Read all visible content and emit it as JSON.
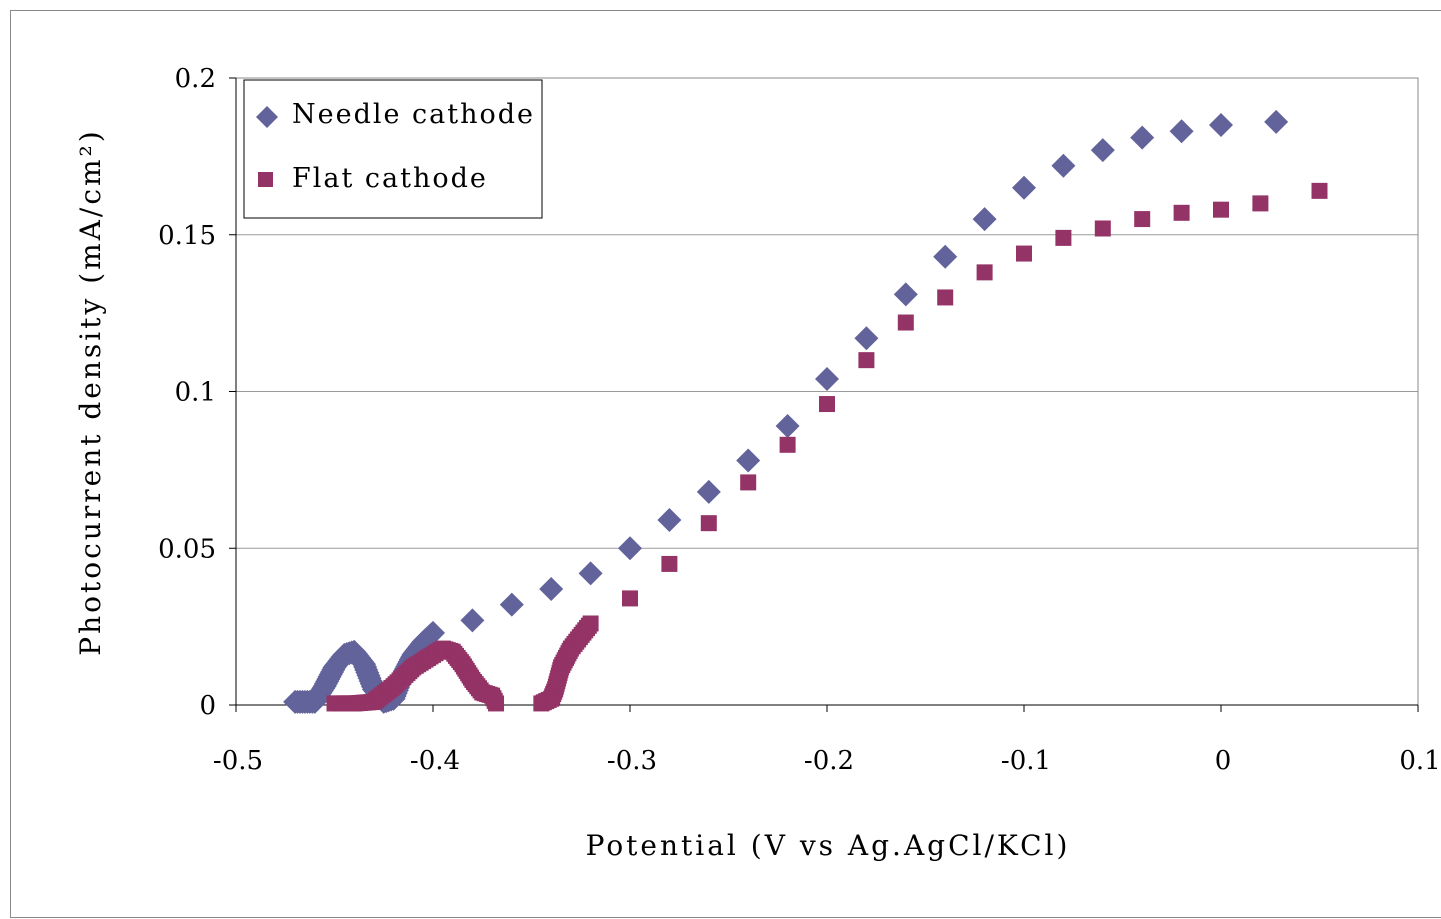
{
  "chart_data": {
    "type": "scatter",
    "xlabel": "Potential (V vs Ag.AgCl/KCl)",
    "ylabel": "Photocurrent density (mA/cm²)",
    "xlim": [
      -0.5,
      0.1
    ],
    "ylim": [
      0,
      0.2
    ],
    "x_ticks": [
      "-0.5",
      "-0.4",
      "-0.3",
      "-0.2",
      "-0.1",
      "0",
      "0.1"
    ],
    "y_ticks": [
      "0",
      "0.05",
      "0.1",
      "0.15",
      "0.2"
    ],
    "grid": "horizontal",
    "legend_position": "top-left",
    "series": [
      {
        "name": "Needle cathode",
        "marker": "diamond",
        "color": "#62639b",
        "points": [
          [
            -0.47,
            0.001
          ],
          [
            -0.465,
            0.001
          ],
          [
            -0.46,
            0.001
          ],
          [
            -0.455,
            0.006
          ],
          [
            -0.45,
            0.012
          ],
          [
            -0.445,
            0.016
          ],
          [
            -0.44,
            0.017
          ],
          [
            -0.435,
            0.013
          ],
          [
            -0.43,
            0.005
          ],
          [
            -0.425,
            0.001
          ],
          [
            -0.42,
            0.002
          ],
          [
            -0.415,
            0.01
          ],
          [
            -0.41,
            0.016
          ],
          [
            -0.405,
            0.02
          ],
          [
            -0.4,
            0.023
          ],
          [
            -0.38,
            0.027
          ],
          [
            -0.36,
            0.032
          ],
          [
            -0.34,
            0.037
          ],
          [
            -0.32,
            0.042
          ],
          [
            -0.3,
            0.05
          ],
          [
            -0.28,
            0.059
          ],
          [
            -0.26,
            0.068
          ],
          [
            -0.24,
            0.078
          ],
          [
            -0.22,
            0.089
          ],
          [
            -0.2,
            0.104
          ],
          [
            -0.18,
            0.117
          ],
          [
            -0.16,
            0.131
          ],
          [
            -0.14,
            0.143
          ],
          [
            -0.12,
            0.155
          ],
          [
            -0.1,
            0.165
          ],
          [
            -0.08,
            0.172
          ],
          [
            -0.06,
            0.177
          ],
          [
            -0.04,
            0.181
          ],
          [
            -0.02,
            0.183
          ],
          [
            0.0,
            0.185
          ],
          [
            0.028,
            0.186
          ]
        ]
      },
      {
        "name": "Flat cathode",
        "marker": "square",
        "color": "#943366",
        "points": [
          [
            -0.45,
            0.0005
          ],
          [
            -0.44,
            0.0005
          ],
          [
            -0.43,
            0.001
          ],
          [
            -0.42,
            0.006
          ],
          [
            -0.41,
            0.012
          ],
          [
            -0.4,
            0.016
          ],
          [
            -0.395,
            0.018
          ],
          [
            -0.39,
            0.017
          ],
          [
            -0.385,
            0.013
          ],
          [
            -0.38,
            0.008
          ],
          [
            -0.375,
            0.004
          ],
          [
            -0.37,
            0.003
          ],
          [
            -0.368,
            0.0005
          ],
          [
            -0.345,
            0.0005
          ],
          [
            -0.34,
            0.002
          ],
          [
            -0.338,
            0.005
          ],
          [
            -0.335,
            0.012
          ],
          [
            -0.33,
            0.018
          ],
          [
            -0.32,
            0.026
          ],
          [
            -0.3,
            0.034
          ],
          [
            -0.28,
            0.045
          ],
          [
            -0.26,
            0.058
          ],
          [
            -0.24,
            0.071
          ],
          [
            -0.22,
            0.083
          ],
          [
            -0.2,
            0.096
          ],
          [
            -0.18,
            0.11
          ],
          [
            -0.16,
            0.122
          ],
          [
            -0.14,
            0.13
          ],
          [
            -0.12,
            0.138
          ],
          [
            -0.1,
            0.144
          ],
          [
            -0.08,
            0.149
          ],
          [
            -0.06,
            0.152
          ],
          [
            -0.04,
            0.155
          ],
          [
            -0.02,
            0.157
          ],
          [
            0.0,
            0.158
          ],
          [
            0.02,
            0.16
          ],
          [
            0.05,
            0.164
          ]
        ]
      }
    ]
  }
}
